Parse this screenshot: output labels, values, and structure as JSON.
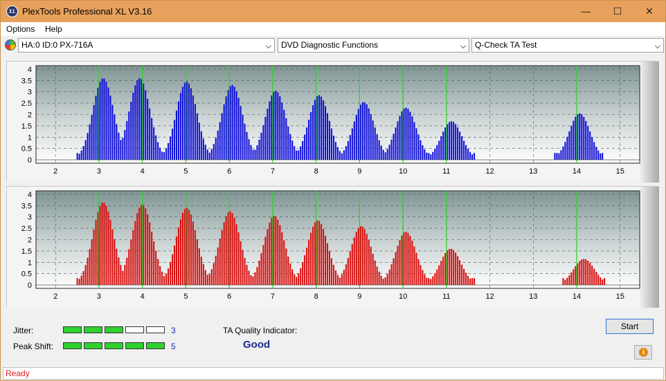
{
  "window": {
    "title": "PlexTools Professional XL V3.16",
    "icon_text": "XL",
    "controls": {
      "minimize": "—",
      "maximize": "☐",
      "close": "✕"
    }
  },
  "menu": [
    "Options",
    "Help"
  ],
  "toolbar": {
    "drive": "HA:0 ID:0  PX-716A",
    "function": "DVD Diagnostic Functions",
    "test": "Q-Check TA Test"
  },
  "chart_data": [
    {
      "type": "bar",
      "color": "#1010d8",
      "x_ticks": [
        2,
        3,
        4,
        5,
        6,
        7,
        8,
        9,
        10,
        11,
        12,
        13,
        14,
        15
      ],
      "y_ticks": [
        "4",
        "3.5",
        "3",
        "2.5",
        "2",
        "1.5",
        "1",
        "0.5",
        "0"
      ],
      "xlim": [
        1.55,
        15.45
      ],
      "ylim": [
        -0.15,
        4.15
      ],
      "markers": [
        3,
        4,
        5,
        6,
        7,
        8,
        9,
        10,
        11,
        14
      ],
      "peaks": [
        {
          "center": 3.08,
          "height": 3.6
        },
        {
          "center": 3.92,
          "height": 3.6
        },
        {
          "center": 5.0,
          "height": 3.45
        },
        {
          "center": 6.05,
          "height": 3.3
        },
        {
          "center": 7.05,
          "height": 3.05
        },
        {
          "center": 8.05,
          "height": 2.85
        },
        {
          "center": 9.08,
          "height": 2.55
        },
        {
          "center": 10.05,
          "height": 2.3
        },
        {
          "center": 11.1,
          "height": 1.7
        },
        {
          "center": 14.05,
          "height": 2.05
        }
      ]
    },
    {
      "type": "bar",
      "color": "#d81010",
      "x_ticks": [
        2,
        3,
        4,
        5,
        6,
        7,
        8,
        9,
        10,
        11,
        12,
        13,
        14,
        15
      ],
      "y_ticks": [
        "4",
        "3.5",
        "3",
        "2.5",
        "2",
        "1.5",
        "1",
        "0.5",
        "0"
      ],
      "xlim": [
        1.55,
        15.45
      ],
      "ylim": [
        -0.15,
        4.15
      ],
      "markers": [
        3,
        4,
        5,
        6,
        7,
        8,
        9,
        10,
        11,
        14
      ],
      "peaks": [
        {
          "center": 3.08,
          "height": 3.65
        },
        {
          "center": 3.98,
          "height": 3.55
        },
        {
          "center": 5.0,
          "height": 3.4
        },
        {
          "center": 6.0,
          "height": 3.25
        },
        {
          "center": 7.02,
          "height": 3.05
        },
        {
          "center": 8.02,
          "height": 2.85
        },
        {
          "center": 9.02,
          "height": 2.6
        },
        {
          "center": 10.05,
          "height": 2.35
        },
        {
          "center": 11.08,
          "height": 1.6
        },
        {
          "center": 14.15,
          "height": 1.15
        }
      ]
    }
  ],
  "bottom": {
    "jitter_label": "Jitter:",
    "jitter_value": "3",
    "jitter_level": 3,
    "peak_label": "Peak Shift:",
    "peak_value": "5",
    "peak_level": 5,
    "meter_segments": 5,
    "ta_label": "TA Quality Indicator:",
    "ta_value": "Good",
    "start_label": "Start",
    "info_icon": "i"
  },
  "status": {
    "text": "Ready"
  }
}
